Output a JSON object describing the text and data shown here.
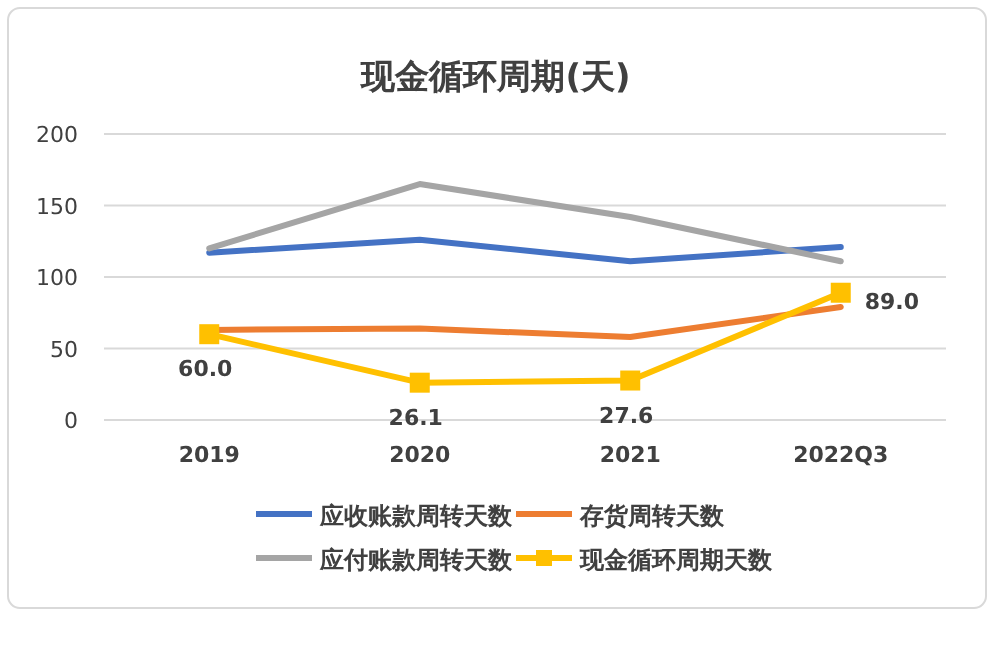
{
  "chart_data": {
    "type": "line",
    "title": "现金循环周期(天)",
    "categories": [
      "2019",
      "2020",
      "2021",
      "2022Q3"
    ],
    "series": [
      {
        "name": "应收账款周转天数",
        "color": "#4472c4",
        "values": [
          117,
          126,
          111,
          121
        ]
      },
      {
        "name": "存货周转天数",
        "color": "#ed7d31",
        "values": [
          63,
          64,
          58,
          79
        ]
      },
      {
        "name": "应付账款周转天数",
        "color": "#a5a5a5",
        "values": [
          120,
          165,
          142,
          111
        ]
      },
      {
        "name": "现金循环周期天数",
        "color": "#ffc000",
        "values": [
          60.0,
          26.1,
          27.6,
          89.0
        ],
        "marker": "square",
        "value_labels": [
          "60.0",
          "26.1",
          "27.6",
          "89.0"
        ]
      }
    ],
    "ylim": [
      0,
      200
    ],
    "yticks": [
      0,
      50,
      100,
      150,
      200
    ],
    "grid": "y",
    "legend": "bottom"
  }
}
